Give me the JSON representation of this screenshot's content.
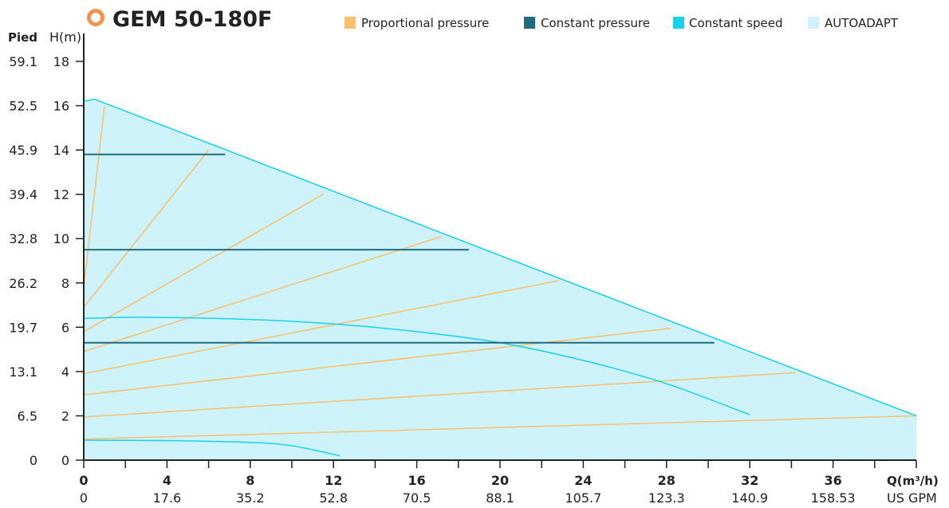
{
  "title": "GEM 50-180F",
  "legend": [
    {
      "key": "proportional",
      "label": "Proportional pressure",
      "color": "#f9bf6b"
    },
    {
      "key": "constant_pressure",
      "label": "Constant pressure",
      "color": "#1f6b80"
    },
    {
      "key": "constant_speed",
      "label": "Constant speed",
      "color": "#17d0ec"
    },
    {
      "key": "autoadapt",
      "label": "AUTOADAPT",
      "color": "#cdf2f9"
    }
  ],
  "colors": {
    "title_icon": "#f4934e",
    "axis": "#222222",
    "envelope_fill": "#cdf2f9",
    "envelope_line": "#17d0ec"
  },
  "chart_data": {
    "type": "line",
    "title": "GEM 50-180F",
    "xlabel": "Q(m³/h)",
    "xlabel_secondary": "US GPM",
    "ylabel": "H(m)",
    "ylabel_secondary": "Pied",
    "xlim": [
      0,
      40
    ],
    "ylim": [
      0,
      18
    ],
    "x_ticks": [
      0,
      4,
      8,
      12,
      16,
      20,
      24,
      28,
      32,
      36
    ],
    "x_ticks_usgpm": [
      "0",
      "17.6",
      "35.2",
      "52.8",
      "70.5",
      "88.1",
      "105.7",
      "123.3",
      "140.9",
      "158.53"
    ],
    "y_ticks": [
      0,
      2,
      4,
      6,
      8,
      10,
      12,
      14,
      16,
      18
    ],
    "y_ticks_pied": [
      "0",
      "6.5",
      "13.1",
      "19.7",
      "26.2",
      "32.8",
      "39.4",
      "45.9",
      "52.5",
      "59.1"
    ],
    "autoadapt_area": [
      [
        0,
        16.2
      ],
      [
        0.5,
        16.3
      ],
      [
        40,
        2.0
      ],
      [
        40,
        0
      ],
      [
        0,
        0
      ]
    ],
    "series": [
      {
        "kind": "constant_speed",
        "points": [
          [
            0,
            16.2
          ],
          [
            0.5,
            16.3
          ],
          [
            40,
            2.0
          ]
        ]
      },
      {
        "kind": "constant_speed",
        "points": [
          [
            0,
            6.4
          ],
          [
            3,
            6.45
          ],
          [
            8,
            6.35
          ],
          [
            12,
            6.15
          ],
          [
            16,
            5.8
          ],
          [
            20,
            5.3
          ],
          [
            24,
            4.5
          ],
          [
            28,
            3.45
          ],
          [
            32,
            2.05
          ]
        ]
      },
      {
        "kind": "constant_speed",
        "points": [
          [
            0,
            0.9
          ],
          [
            4,
            0.88
          ],
          [
            8,
            0.8
          ],
          [
            10,
            0.65
          ],
          [
            12.3,
            0.2
          ]
        ]
      },
      {
        "kind": "constant_pressure",
        "points": [
          [
            0,
            13.8
          ],
          [
            6.8,
            13.8
          ]
        ]
      },
      {
        "kind": "constant_pressure",
        "points": [
          [
            0,
            9.5
          ],
          [
            18.5,
            9.5
          ]
        ]
      },
      {
        "kind": "constant_pressure",
        "points": [
          [
            0,
            5.3
          ],
          [
            30.3,
            5.3
          ]
        ]
      },
      {
        "kind": "proportional",
        "points": [
          [
            0,
            7.8
          ],
          [
            1.0,
            16.0
          ]
        ]
      },
      {
        "kind": "proportional",
        "points": [
          [
            0,
            6.9
          ],
          [
            6.0,
            14.0
          ]
        ]
      },
      {
        "kind": "proportional",
        "points": [
          [
            0,
            5.8
          ],
          [
            11.5,
            12.0
          ]
        ]
      },
      {
        "kind": "proportional",
        "points": [
          [
            0,
            4.9
          ],
          [
            17.2,
            10.1
          ]
        ]
      },
      {
        "kind": "proportional",
        "points": [
          [
            0,
            3.9
          ],
          [
            22.8,
            8.1
          ]
        ]
      },
      {
        "kind": "proportional",
        "points": [
          [
            0,
            2.95
          ],
          [
            28.2,
            5.95
          ]
        ]
      },
      {
        "kind": "proportional",
        "points": [
          [
            0,
            1.95
          ],
          [
            34.2,
            3.95
          ]
        ]
      },
      {
        "kind": "proportional",
        "points": [
          [
            0,
            0.95
          ],
          [
            40,
            2.0
          ]
        ]
      }
    ]
  }
}
